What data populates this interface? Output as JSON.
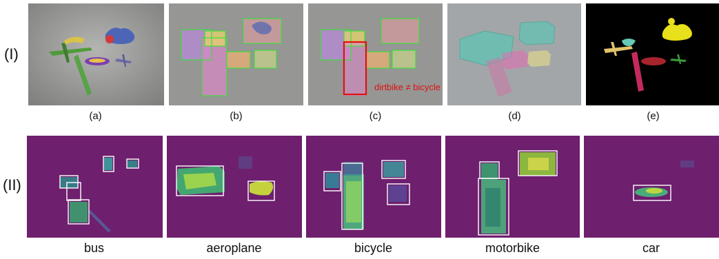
{
  "rows": [
    {
      "label": "(I)",
      "captions": [
        "(a)",
        "(b)",
        "(c)",
        "(d)",
        "(e)"
      ]
    },
    {
      "label": "(II)",
      "captions": [
        "bus",
        "aeroplane",
        "bicycle",
        "motorbike",
        "car"
      ]
    }
  ],
  "annotation": "dirtbike ≠ bicycle",
  "colors": {
    "scene_bg": "#9c9c9c",
    "heatmap_bg": "#6e1f6e",
    "detect_box": "#3be03b",
    "wrong_box": "#e01010",
    "attention_box": "#ffffff"
  }
}
